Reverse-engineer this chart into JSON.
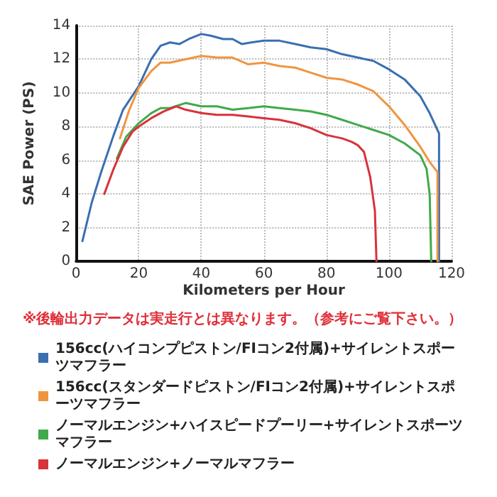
{
  "chart_data": {
    "type": "line",
    "xlabel": "Kilometers per Hour",
    "ylabel": "SAE Power (PS)",
    "xlim": [
      0,
      120
    ],
    "xticks": [
      0,
      20,
      40,
      60,
      80,
      100,
      120
    ],
    "ylim": [
      0,
      14
    ],
    "yticks": [
      0,
      2,
      4,
      6,
      8,
      10,
      12,
      14
    ],
    "grid": true,
    "legend": "bottom",
    "marker": "none",
    "line_style": "solid",
    "annotations": [
      "※後輪出力データは実走行とは異なります。（参考にご覧下さい。）"
    ],
    "series": [
      {
        "name": "156cc(ハイコンプピストン/FIコン2付属)+サイレントスポーツマフラー",
        "color": "#3a6fb0",
        "x": [
          2,
          5,
          8,
          12,
          15,
          20,
          24,
          27,
          30,
          33,
          36,
          40,
          43,
          47,
          50,
          53,
          56,
          60,
          65,
          70,
          75,
          80,
          85,
          90,
          95,
          100,
          105,
          110,
          113,
          115,
          116,
          116
        ],
        "values": [
          1.2,
          3.5,
          5.3,
          7.5,
          9,
          10.4,
          12,
          12.8,
          13,
          12.9,
          13.2,
          13.5,
          13.4,
          13.2,
          13.2,
          12.9,
          13,
          13.1,
          13.1,
          12.9,
          12.7,
          12.6,
          12.3,
          12.1,
          11.9,
          11.4,
          10.8,
          9.8,
          8.8,
          8.0,
          7.6,
          0
        ]
      },
      {
        "name": "156cc(スタンダードピストン/FIコン2付属)+サイレントスポーツマフラー",
        "color": "#f0953f",
        "x": [
          14,
          17,
          20,
          24,
          27,
          30,
          35,
          40,
          45,
          50,
          55,
          60,
          65,
          70,
          75,
          80,
          85,
          90,
          95,
          100,
          105,
          110,
          113,
          115.5,
          115.5
        ],
        "values": [
          7.3,
          9,
          10.3,
          11.3,
          11.8,
          11.8,
          12,
          12.2,
          12.1,
          12.1,
          11.7,
          11.8,
          11.6,
          11.5,
          11.2,
          10.9,
          10.8,
          10.5,
          10.1,
          9.2,
          8.1,
          6.8,
          5.9,
          5.3,
          0
        ]
      },
      {
        "name": "ノーマルエンジン+ハイスピードプーリー+サイレントスポーツマフラー",
        "color": "#3faa4a",
        "x": [
          13,
          16,
          20,
          24,
          27,
          30,
          35,
          40,
          45,
          50,
          55,
          60,
          65,
          70,
          75,
          80,
          85,
          90,
          95,
          100,
          105,
          110,
          112,
          113,
          113.5
        ],
        "values": [
          6.1,
          7.4,
          8.2,
          8.8,
          9.1,
          9.1,
          9.4,
          9.2,
          9.2,
          9.0,
          9.1,
          9.2,
          9.1,
          9.0,
          8.9,
          8.7,
          8.4,
          8.1,
          7.8,
          7.5,
          7.0,
          6.3,
          5.5,
          4,
          0
        ]
      },
      {
        "name": "ノーマルエンジン+ノーマルマフラー",
        "color": "#d8323a",
        "x": [
          9,
          12,
          15,
          18,
          20,
          24,
          28,
          32,
          35,
          40,
          45,
          50,
          55,
          60,
          65,
          70,
          75,
          80,
          85,
          88,
          90,
          92,
          94,
          95.5,
          96
        ],
        "values": [
          4,
          5.5,
          6.8,
          7.7,
          8,
          8.5,
          8.9,
          9.2,
          9.0,
          8.8,
          8.7,
          8.7,
          8.6,
          8.5,
          8.4,
          8.2,
          7.9,
          7.5,
          7.3,
          7.1,
          6.9,
          6.5,
          5,
          3,
          0
        ]
      }
    ]
  }
}
